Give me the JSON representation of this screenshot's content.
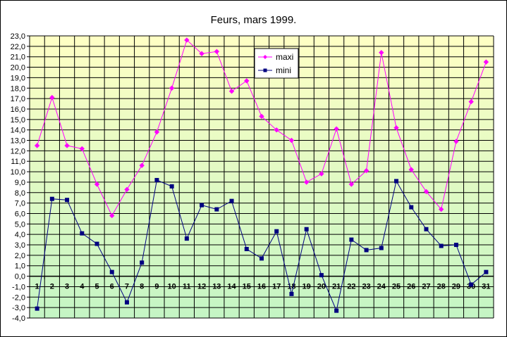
{
  "chart_data": {
    "type": "line",
    "title": "Feurs, mars 1999.",
    "xlabel": "",
    "ylabel": "",
    "categories": [
      "1",
      "2",
      "3",
      "4",
      "5",
      "6",
      "7",
      "8",
      "9",
      "10",
      "11",
      "12",
      "13",
      "14",
      "15",
      "16",
      "17",
      "18",
      "19",
      "20",
      "21",
      "22",
      "23",
      "24",
      "25",
      "26",
      "27",
      "28",
      "29",
      "30",
      "31"
    ],
    "ylim": [
      -4.0,
      23.0
    ],
    "ytick_step": 1.0,
    "yticks": [
      "23,0",
      "22,0",
      "21,0",
      "20,0",
      "19,0",
      "18,0",
      "17,0",
      "16,0",
      "15,0",
      "14,0",
      "13,0",
      "12,0",
      "11,0",
      "10,0",
      "9,0",
      "8,0",
      "7,0",
      "6,0",
      "5,0",
      "4,0",
      "3,0",
      "2,0",
      "1,0",
      "0,0",
      "-1,0",
      "-2,0",
      "-3,0",
      "-4,0"
    ],
    "grid": true,
    "legend_position": "top-center",
    "series": [
      {
        "name": "maxi",
        "color": "#ff00ff",
        "marker": "diamond",
        "values": [
          12.5,
          17.1,
          12.5,
          12.2,
          8.8,
          5.8,
          8.3,
          10.6,
          13.8,
          18.0,
          22.6,
          21.3,
          21.5,
          17.7,
          18.7,
          15.3,
          14.0,
          13.0,
          9.0,
          9.8,
          14.1,
          8.8,
          10.1,
          21.4,
          14.2,
          10.2,
          8.1,
          6.4,
          12.9,
          16.7,
          20.5
        ]
      },
      {
        "name": "mini",
        "color": "#000080",
        "marker": "square",
        "values": [
          -3.1,
          7.4,
          7.3,
          4.1,
          3.1,
          0.4,
          -2.5,
          1.3,
          9.2,
          8.6,
          3.6,
          6.8,
          6.4,
          7.2,
          2.6,
          1.7,
          4.3,
          -1.7,
          4.5,
          0.1,
          -3.3,
          3.5,
          2.5,
          2.7,
          9.1,
          6.6,
          4.5,
          2.9,
          3.0,
          -0.8,
          0.4
        ]
      }
    ]
  }
}
